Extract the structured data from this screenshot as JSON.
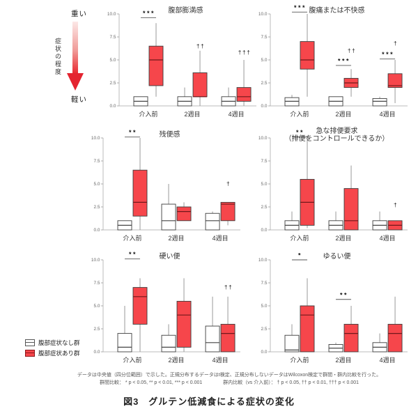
{
  "caption": "図3　グルテン低減食による症状の変化",
  "severity_scale": {
    "top": "重い",
    "axis_label": "症状の程度",
    "bottom": "軽い"
  },
  "legend": [
    {
      "label": "腹部症状なし群",
      "color": "#ffffff"
    },
    {
      "label": "腹部症状あり群",
      "color": "#f6464b"
    }
  ],
  "notes": {
    "line1": "データは中央値（四分位範囲）で示した。正規分布するデータはt検定、正規分布しないデータはWilcoxon検定で群間・群内比較を行った。",
    "line2_between": "群間比較： * p < 0.05, ** p < 0.01, *** p < 0.001",
    "line2_within": "群内比較（vs 介入前）： † p < 0.05, †† p < 0.01, ††† p < 0.001"
  },
  "colors": {
    "box_red": "#f6464b",
    "box_border": "#3c3c3c",
    "median_red": "#70181b",
    "median_white": "#444444",
    "whisker": "#999999",
    "axis": "#bbbbbb",
    "tick_label": "#666666",
    "annotation": "#111111",
    "arrow_start": "#fce8e7",
    "arrow_end": "#e8242c"
  },
  "chart_data": [
    {
      "type": "boxplot",
      "title": [
        "腹部膨満感"
      ],
      "categories": [
        "介入前",
        "2週目",
        "4週目"
      ],
      "ylim": [
        0,
        10
      ],
      "yticks": [
        0,
        2.5,
        5,
        7.5,
        10
      ],
      "series": [
        {
          "name": "腹部症状なし群",
          "fill": "#ffffff",
          "boxes": [
            [
              0,
              0,
              0.5,
              1,
              1
            ],
            [
              0,
              0,
              0.5,
              1,
              2
            ],
            [
              0,
              0,
              0.5,
              1,
              2
            ]
          ]
        },
        {
          "name": "腹部症状あり群",
          "fill": "#f6464b",
          "boxes": [
            [
              1,
              2.2,
              5,
              6.5,
              9
            ],
            [
              0,
              1,
              1,
              3.6,
              6
            ],
            [
              0,
              0.5,
              1,
              2,
              5
            ]
          ]
        }
      ],
      "annotations": [
        {
          "category": 0,
          "kind": "between-group",
          "label": "***",
          "y": 9.6
        },
        {
          "category": 1,
          "kind": "within-group",
          "label": "††",
          "y": 6.3
        },
        {
          "category": 2,
          "kind": "within-group",
          "label": "†††",
          "y": 5.6
        }
      ]
    },
    {
      "type": "boxplot",
      "title": [
        "腹痛または不快感"
      ],
      "categories": [
        "介入前",
        "2週目",
        "4週目"
      ],
      "ylim": [
        0,
        10
      ],
      "yticks": [
        0,
        2.5,
        5,
        7.5,
        10
      ],
      "series": [
        {
          "name": "腹部症状なし群",
          "fill": "#ffffff",
          "boxes": [
            [
              0,
              0,
              0.5,
              0.9,
              1.2
            ],
            [
              0,
              0,
              0.5,
              1,
              1
            ],
            [
              0,
              0,
              0.5,
              0.8,
              1
            ]
          ]
        },
        {
          "name": "腹部症状あり群",
          "fill": "#f6464b",
          "boxes": [
            [
              1,
              4,
              5,
              7,
              10
            ],
            [
              1,
              2,
              2.5,
              3,
              4
            ],
            [
              0.3,
              2,
              2.2,
              3.5,
              5
            ]
          ]
        }
      ],
      "annotations": [
        {
          "category": 0,
          "kind": "between-group",
          "label": "***",
          "y": 10.2
        },
        {
          "category": 1,
          "kind": "between-group",
          "label": "***",
          "y": 4.4
        },
        {
          "category": 1,
          "kind": "within-group",
          "label": "††",
          "y": 5.8
        },
        {
          "category": 2,
          "kind": "between-group",
          "label": "***",
          "y": 5.1
        },
        {
          "category": 2,
          "kind": "within-group",
          "label": "†",
          "y": 6.6
        }
      ]
    },
    {
      "type": "boxplot",
      "title": [
        "残便感"
      ],
      "categories": [
        "介入前",
        "2週目",
        "4週目"
      ],
      "ylim": [
        0,
        10
      ],
      "yticks": [
        0,
        2.5,
        5,
        7.5,
        10
      ],
      "series": [
        {
          "name": "腹部症状なし群",
          "fill": "#ffffff",
          "boxes": [
            [
              0,
              0,
              0.5,
              1,
              1
            ],
            [
              0,
              0,
              1,
              2.8,
              5
            ],
            [
              0,
              0,
              1,
              1.8,
              2
            ]
          ]
        },
        {
          "name": "腹部症状あり群",
          "fill": "#f6464b",
          "boxes": [
            [
              0,
              1.5,
              3,
              6.5,
              10
            ],
            [
              1,
              1,
              2,
              2.5,
              3
            ],
            [
              0.5,
              1,
              2.8,
              3,
              3
            ]
          ]
        }
      ],
      "annotations": [
        {
          "category": 0,
          "kind": "between-group",
          "label": "**",
          "y": 10.1
        },
        {
          "category": 2,
          "kind": "within-group",
          "label": "†",
          "y": 4.8
        }
      ]
    },
    {
      "type": "boxplot",
      "title": [
        "急な排便要求",
        "（排便をコントロールできるか）"
      ],
      "categories": [
        "介入前",
        "2週目",
        "4週目"
      ],
      "ylim": [
        0,
        10
      ],
      "yticks": [
        0,
        2.5,
        5,
        7.5,
        10
      ],
      "series": [
        {
          "name": "腹部症状なし群",
          "fill": "#ffffff",
          "boxes": [
            [
              0,
              0,
              0.5,
              1,
              2
            ],
            [
              0,
              0,
              0.5,
              1,
              2
            ],
            [
              0,
              0,
              0.5,
              1,
              2
            ]
          ]
        },
        {
          "name": "腹部症状あり群",
          "fill": "#f6464b",
          "boxes": [
            [
              0.2,
              0.5,
              3,
              5.5,
              10
            ],
            [
              0,
              0,
              1,
              4.5,
              7
            ],
            [
              0,
              0,
              0.5,
              1,
              1
            ]
          ]
        }
      ],
      "annotations": [
        {
          "category": 0,
          "kind": "between-group",
          "label": "**",
          "y": 10.1
        },
        {
          "category": 2,
          "kind": "within-group",
          "label": "†",
          "y": 2.5
        }
      ]
    },
    {
      "type": "boxplot",
      "title": [
        "硬い便"
      ],
      "categories": [
        "介入前",
        "2週目",
        "4週目"
      ],
      "ylim": [
        0,
        10
      ],
      "yticks": [
        0,
        2.5,
        5,
        7.5,
        10
      ],
      "series": [
        {
          "name": "腹部症状なし群",
          "fill": "#ffffff",
          "boxes": [
            [
              0,
              0,
              0.5,
              2,
              5
            ],
            [
              0,
              0,
              0.5,
              1.8,
              3
            ],
            [
              0,
              0,
              1,
              2.8,
              6
            ]
          ]
        },
        {
          "name": "腹部症状あり群",
          "fill": "#f6464b",
          "boxes": [
            [
              0,
              3,
              6,
              7,
              8
            ],
            [
              0,
              0.5,
              4,
              5.5,
              8
            ],
            [
              0,
              0,
              2,
              3,
              6
            ]
          ]
        }
      ],
      "annotations": [
        {
          "category": 0,
          "kind": "between-group",
          "label": "**",
          "y": 10.1
        },
        {
          "category": 2,
          "kind": "within-group",
          "label": "††",
          "y": 6.8
        }
      ]
    },
    {
      "type": "boxplot",
      "title": [
        "ゆるい便"
      ],
      "categories": [
        "介入前",
        "2週目",
        "4週目"
      ],
      "ylim": [
        0,
        10
      ],
      "yticks": [
        0,
        2.5,
        5,
        7.5,
        10
      ],
      "series": [
        {
          "name": "腹部症状なし群",
          "fill": "#ffffff",
          "boxes": [
            [
              0,
              0,
              0.2,
              1.8,
              3
            ],
            [
              0,
              0,
              0.4,
              0.8,
              1
            ],
            [
              0,
              0,
              0.5,
              1,
              2
            ]
          ]
        },
        {
          "name": "腹部症状あり群",
          "fill": "#f6464b",
          "boxes": [
            [
              0,
              0,
              4,
              5,
              8
            ],
            [
              0,
              0,
              2,
              3,
              5
            ],
            [
              0,
              0,
              2,
              3,
              6
            ]
          ]
        }
      ],
      "annotations": [
        {
          "category": 0,
          "kind": "between-group",
          "label": "*",
          "y": 10.0
        },
        {
          "category": 1,
          "kind": "between-group",
          "label": "**",
          "y": 5.7
        }
      ]
    }
  ]
}
